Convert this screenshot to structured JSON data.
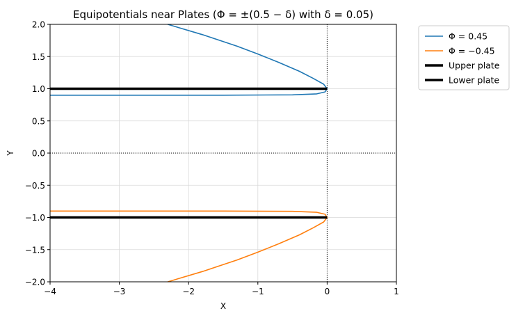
{
  "chart_data": {
    "type": "line",
    "title": "Equipotentials near Plates (Φ = ±(0.5 − δ) with δ = 0.05)",
    "xlabel": "X",
    "ylabel": "Y",
    "xlim": [
      -4,
      1
    ],
    "ylim": [
      -2,
      2
    ],
    "xticks": [
      "−4",
      "−3",
      "−2",
      "−1",
      "0",
      "1"
    ],
    "yticks": [
      "−2.0",
      "−1.5",
      "−1.0",
      "−0.5",
      "0.0",
      "0.5",
      "1.0",
      "1.5",
      "2.0"
    ],
    "grid": true,
    "legend_position": "outside-top-right",
    "reference_lines": [
      {
        "orientation": "horizontal",
        "value": 0,
        "style": "dotted",
        "color": "#000000"
      },
      {
        "orientation": "vertical",
        "value": 0,
        "style": "dotted",
        "color": "#000000"
      }
    ],
    "series": [
      {
        "name": "Φ = 0.45",
        "color": "#1f77b4",
        "x": [
          -2.3,
          -1.8,
          -1.3,
          -1.0,
          -0.7,
          -0.4,
          -0.2,
          -0.05,
          0.0,
          -0.03,
          -0.15,
          -0.5,
          -1.5,
          -2.5,
          -4.0
        ],
        "y": [
          2.0,
          1.84,
          1.66,
          1.54,
          1.41,
          1.27,
          1.16,
          1.07,
          1.0,
          0.95,
          0.92,
          0.905,
          0.9,
          0.9,
          0.9
        ]
      },
      {
        "name": "Φ = −0.45",
        "color": "#ff7f0e",
        "x": [
          -2.3,
          -1.8,
          -1.3,
          -1.0,
          -0.7,
          -0.4,
          -0.2,
          -0.05,
          0.0,
          -0.03,
          -0.15,
          -0.5,
          -1.5,
          -2.5,
          -4.0
        ],
        "y": [
          -2.0,
          -1.84,
          -1.66,
          -1.54,
          -1.41,
          -1.27,
          -1.16,
          -1.07,
          -1.0,
          -0.95,
          -0.92,
          -0.905,
          -0.9,
          -0.9,
          -0.9
        ]
      },
      {
        "name": "Upper plate",
        "color": "#000000",
        "x": [
          -4,
          0
        ],
        "y": [
          1,
          1
        ]
      },
      {
        "name": "Lower plate",
        "color": "#000000",
        "x": [
          -4,
          0
        ],
        "y": [
          -1,
          -1
        ]
      }
    ]
  }
}
